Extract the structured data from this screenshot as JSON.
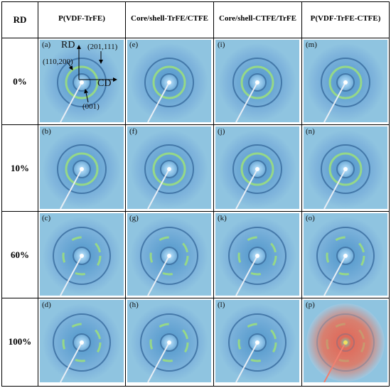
{
  "header": {
    "rd": "RD",
    "columns": [
      "P(VDF-TrFE)",
      "Core/shell-TrFE/CTFE",
      "Core/shell-CTFE/TrFE",
      "P(VDF-TrFE-CTFE)"
    ]
  },
  "rows": [
    "0%",
    "10%",
    "60%",
    "100%"
  ],
  "panels": [
    [
      "(a)",
      "(e)",
      "(i)",
      "(m)"
    ],
    [
      "(b)",
      "(f)",
      "(j)",
      "(n)"
    ],
    [
      "(c)",
      "(g)",
      "(k)",
      "(o)"
    ],
    [
      "(d)",
      "(h)",
      "(l)",
      "(p)"
    ]
  ],
  "annotations": {
    "rd": "RD",
    "cd": "CD",
    "peak_201": "(201,111)",
    "peak_110": "(110,200)",
    "peak_001": "(001)"
  },
  "colors": {
    "background": "#8fc4e0",
    "ring": "#9ee07a",
    "red_hot": "#e05a4a"
  }
}
